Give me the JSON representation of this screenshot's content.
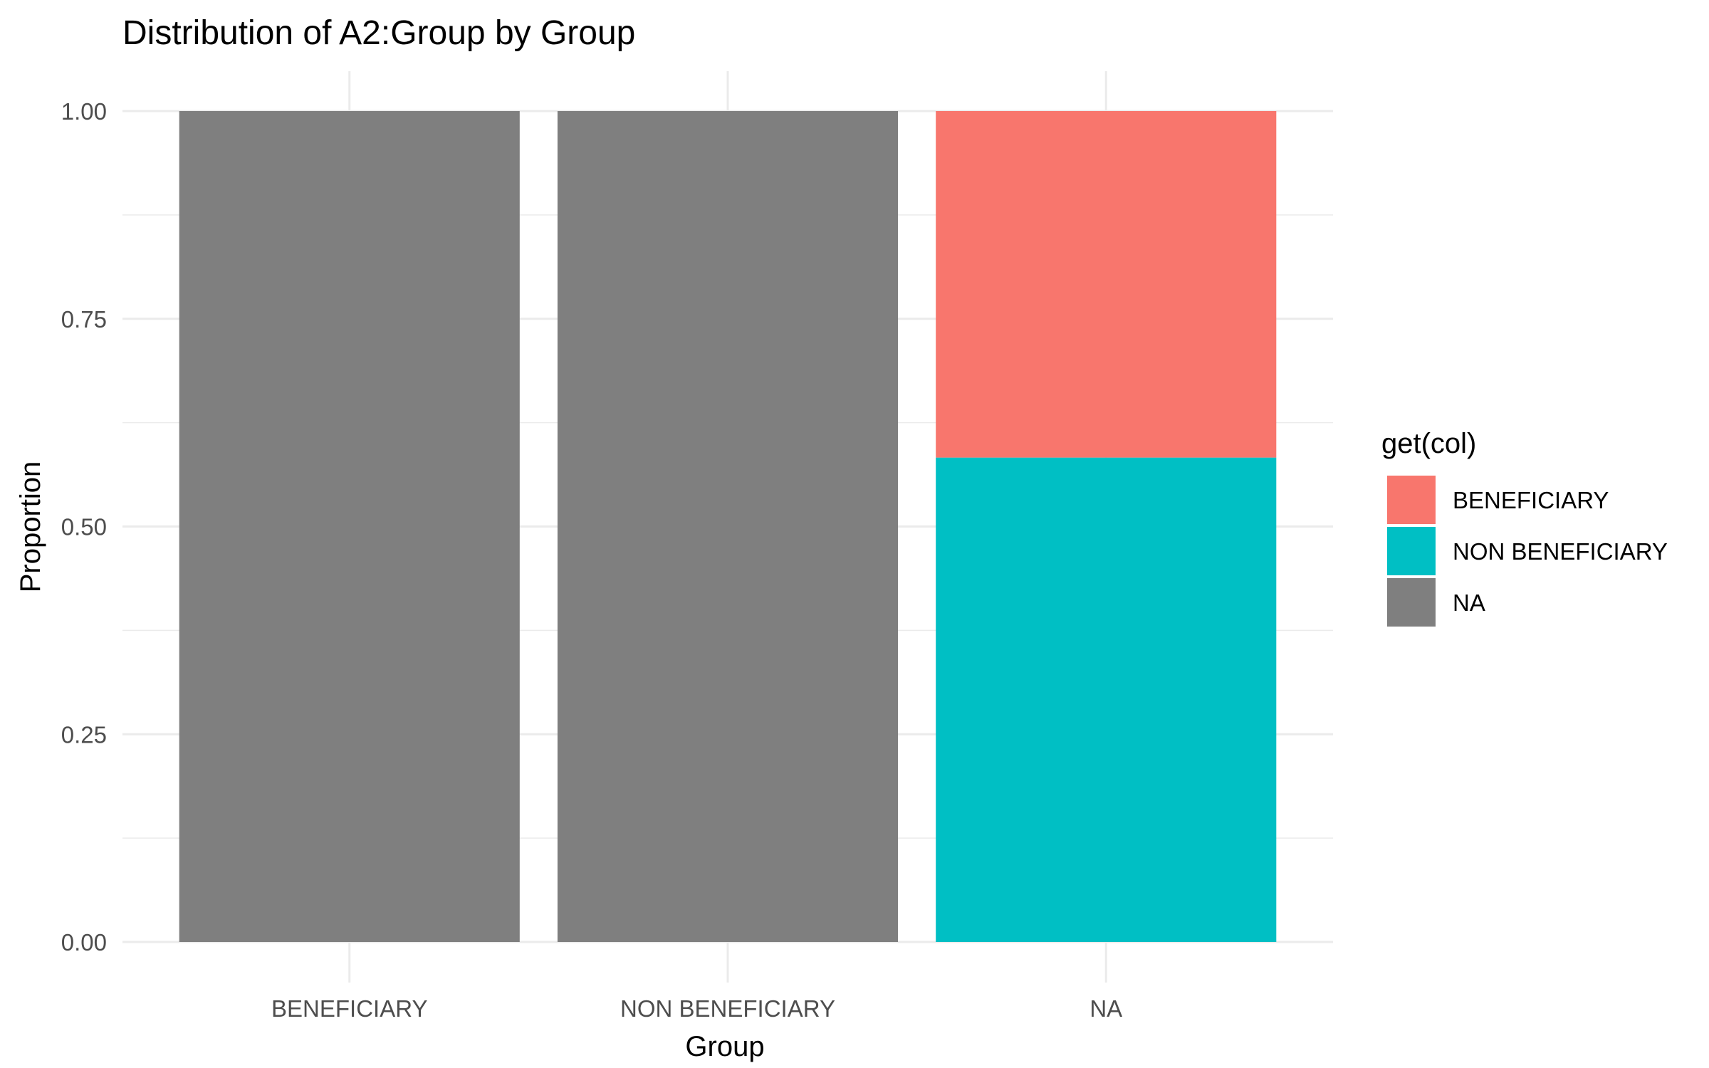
{
  "chart_data": {
    "type": "bar",
    "stacked": true,
    "title": "Distribution of A2:Group by Group",
    "xlabel": "Group",
    "ylabel": "Proportion",
    "categories": [
      "BENEFICIARY",
      "NON BENEFICIARY",
      "NA"
    ],
    "ylim": [
      0,
      1
    ],
    "yticks": [
      "0.00",
      "0.25",
      "0.50",
      "0.75",
      "1.00"
    ],
    "ytick_values": [
      0,
      0.25,
      0.5,
      0.75,
      1
    ],
    "grid": true,
    "legend": {
      "title": "get(col)",
      "position": "right",
      "entries": [
        "BENEFICIARY",
        "NON BENEFICIARY",
        "NA"
      ]
    },
    "series": [
      {
        "name": "NON BENEFICIARY",
        "color": "#00BFC4",
        "values": [
          0,
          0,
          0.583
        ]
      },
      {
        "name": "BENEFICIARY",
        "color": "#F8766D",
        "values": [
          0,
          0,
          0.417
        ]
      },
      {
        "name": "NA",
        "color": "#7F7F7F",
        "values": [
          1,
          1,
          0
        ]
      }
    ],
    "legend_colors": [
      "#F8766D",
      "#00BFC4",
      "#7F7F7F"
    ]
  }
}
